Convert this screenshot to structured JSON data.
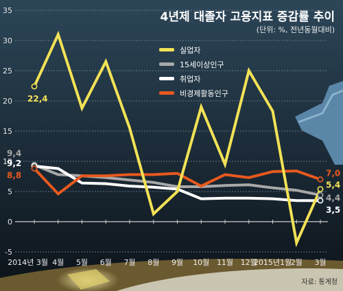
{
  "chart_data": {
    "type": "line",
    "title": "4년제 대졸자 고용지표 증감률 추이",
    "subtitle": "(단위: %, 전년동월대비)",
    "source": "자료: 통계청",
    "x": [
      "2014년 3월",
      "4월",
      "5월",
      "6월",
      "7월",
      "8월",
      "9월",
      "10월",
      "11월",
      "12월",
      "2015년1월",
      "2월",
      "3월"
    ],
    "ylim": [
      -5,
      35
    ],
    "yticks": [
      -5,
      0,
      5,
      10,
      15,
      20,
      25,
      30,
      35
    ],
    "grid": true,
    "legend": "top-center",
    "series": [
      {
        "name": "실업자",
        "color": "#f2e256",
        "values": [
          22.4,
          31.0,
          18.8,
          26.5,
          15.5,
          1.3,
          5.0,
          19.0,
          9.5,
          25.0,
          18.3,
          -3.5,
          5.4
        ]
      },
      {
        "name": "15세이상인구",
        "color": "#a8a8a8",
        "values": [
          9.4,
          7.8,
          7.6,
          7.3,
          6.9,
          6.5,
          5.8,
          5.8,
          6.0,
          6.1,
          5.6,
          5.2,
          4.4
        ]
      },
      {
        "name": "취업자",
        "color": "#ffffff",
        "values": [
          9.2,
          8.8,
          6.4,
          6.3,
          5.9,
          5.7,
          5.4,
          3.8,
          3.9,
          3.9,
          3.8,
          3.5,
          3.5
        ]
      },
      {
        "name": "비경제활동인구",
        "color": "#e8591e",
        "values": [
          8.8,
          4.6,
          7.6,
          7.6,
          7.8,
          7.8,
          8.0,
          5.9,
          7.8,
          7.3,
          8.3,
          8.4,
          7.0
        ]
      }
    ],
    "labels": [
      {
        "series": 0,
        "index": 0,
        "text": "22,4"
      },
      {
        "series": 1,
        "index": 0,
        "text": "9,4"
      },
      {
        "series": 2,
        "index": 0,
        "text": "9,2"
      },
      {
        "series": 3,
        "index": 0,
        "text": "8,8"
      },
      {
        "series": 3,
        "index": 12,
        "text": "7,0"
      },
      {
        "series": 0,
        "index": 12,
        "text": "5,4"
      },
      {
        "series": 1,
        "index": 12,
        "text": "4,4"
      },
      {
        "series": 2,
        "index": 12,
        "text": "3,5"
      }
    ]
  }
}
